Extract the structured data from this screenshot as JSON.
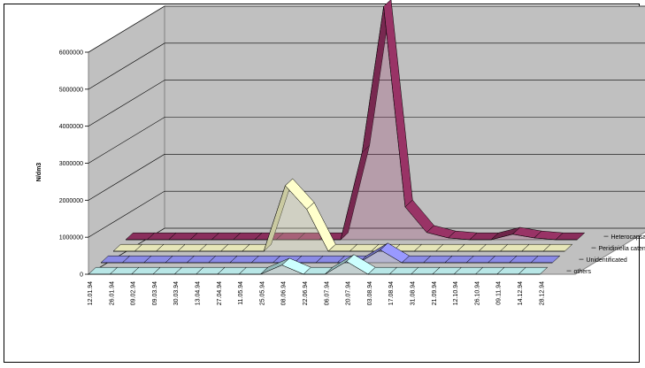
{
  "chart_data": {
    "type": "area",
    "style": "3d-ribbon",
    "title": "",
    "ylabel": "N/dm3",
    "xlabel": "",
    "ylim": [
      0,
      6000000
    ],
    "yticks": [
      "0",
      "1000000",
      "2000000",
      "3000000",
      "4000000",
      "5000000",
      "6000000"
    ],
    "grid": true,
    "legend": "depth-axis",
    "categories": [
      "12.01.94",
      "26.01.94",
      "09.02.94",
      "09.03.94",
      "30.03.94",
      "13.04.94",
      "27.04.94",
      "11.05.94",
      "25.05.94",
      "08.06.94",
      "22.06.94",
      "06.07.94",
      "20.07.94",
      "03.08.94",
      "17.08.94",
      "31.08.94",
      "21.09.94",
      "12.10.94",
      "26.10.94",
      "09.11.94",
      "14.12.94",
      "28.12.94"
    ],
    "series": [
      {
        "name": "others",
        "color": "#ccffff",
        "values": [
          0,
          0,
          0,
          0,
          0,
          0,
          0,
          0,
          0,
          250000,
          0,
          0,
          350000,
          0,
          0,
          0,
          0,
          0,
          0,
          0,
          0,
          0
        ]
      },
      {
        "name": "Unidentificated",
        "color": "#9999ff",
        "values": [
          0,
          0,
          0,
          0,
          0,
          0,
          0,
          0,
          0,
          0,
          0,
          0,
          0,
          350000,
          0,
          0,
          0,
          0,
          0,
          0,
          0,
          0
        ]
      },
      {
        "name": "Peridiniella catenata",
        "color": "#ffffcc",
        "values": [
          0,
          0,
          0,
          0,
          0,
          0,
          0,
          0,
          1800000,
          1150000,
          0,
          0,
          0,
          0,
          0,
          0,
          0,
          0,
          0,
          0,
          0,
          0
        ]
      },
      {
        "name": "Heterocapsa triquetra",
        "color": "#993366",
        "values": [
          0,
          0,
          0,
          0,
          0,
          0,
          0,
          0,
          0,
          0,
          0,
          2400000,
          6400000,
          900000,
          200000,
          50000,
          0,
          0,
          150000,
          50000,
          0,
          0
        ]
      }
    ]
  }
}
